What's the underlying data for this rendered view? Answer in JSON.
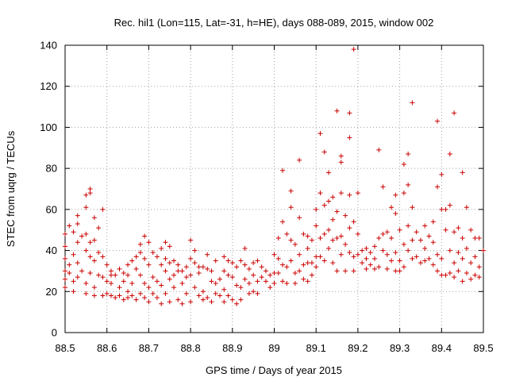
{
  "chart_data": {
    "type": "scatter",
    "title": "Rec. hil1 (Lon=115, Lat=-31, h=HE), days 088-089, 2015, window 002",
    "xlabel": "GPS time / Days of year 2015",
    "ylabel": "STEC from uqrg / TECUs",
    "xlim": [
      88.5,
      89.5
    ],
    "ylim": [
      0,
      140
    ],
    "xticks": [
      "88.5",
      "88.6",
      "88.7",
      "88.8",
      "88.9",
      "89",
      "89.1",
      "89.2",
      "89.3",
      "89.4",
      "89.5"
    ],
    "yticks": [
      "0",
      "20",
      "40",
      "60",
      "80",
      "100",
      "120",
      "140"
    ],
    "grid": true,
    "legend": "none",
    "marker": "plus",
    "color": "#cc0000",
    "points": [
      [
        88.5,
        48
      ],
      [
        88.5,
        42
      ],
      [
        88.5,
        36
      ],
      [
        88.5,
        30
      ],
      [
        88.5,
        26
      ],
      [
        88.5,
        22
      ],
      [
        88.51,
        52
      ],
      [
        88.51,
        33
      ],
      [
        88.51,
        29
      ],
      [
        88.52,
        49
      ],
      [
        88.52,
        38
      ],
      [
        88.52,
        25
      ],
      [
        88.52,
        20
      ],
      [
        88.53,
        57
      ],
      [
        88.53,
        53
      ],
      [
        88.53,
        44
      ],
      [
        88.53,
        34
      ],
      [
        88.53,
        27
      ],
      [
        88.54,
        47
      ],
      [
        88.54,
        30
      ],
      [
        88.55,
        61
      ],
      [
        88.55,
        67
      ],
      [
        88.55,
        48
      ],
      [
        88.55,
        40
      ],
      [
        88.55,
        24
      ],
      [
        88.55,
        19
      ],
      [
        88.56,
        70
      ],
      [
        88.56,
        68
      ],
      [
        88.56,
        44
      ],
      [
        88.56,
        37
      ],
      [
        88.56,
        29
      ],
      [
        88.57,
        56
      ],
      [
        88.57,
        45
      ],
      [
        88.57,
        35
      ],
      [
        88.57,
        22
      ],
      [
        88.57,
        18
      ],
      [
        88.58,
        51
      ],
      [
        88.58,
        39
      ],
      [
        88.58,
        28
      ],
      [
        88.59,
        60
      ],
      [
        88.59,
        37
      ],
      [
        88.59,
        27
      ],
      [
        88.59,
        18
      ],
      [
        88.6,
        33
      ],
      [
        88.6,
        25
      ],
      [
        88.6,
        19
      ],
      [
        88.61,
        30
      ],
      [
        88.61,
        28
      ],
      [
        88.61,
        24
      ],
      [
        88.61,
        18
      ],
      [
        88.62,
        28
      ],
      [
        88.62,
        17
      ],
      [
        88.63,
        31
      ],
      [
        88.63,
        22
      ],
      [
        88.63,
        18
      ],
      [
        88.64,
        29
      ],
      [
        88.64,
        25
      ],
      [
        88.64,
        16
      ],
      [
        88.65,
        33
      ],
      [
        88.65,
        28
      ],
      [
        88.65,
        20
      ],
      [
        88.65,
        17
      ],
      [
        88.66,
        35
      ],
      [
        88.66,
        24
      ],
      [
        88.66,
        18
      ],
      [
        88.67,
        37
      ],
      [
        88.67,
        31
      ],
      [
        88.67,
        16
      ],
      [
        88.68,
        43
      ],
      [
        88.68,
        39
      ],
      [
        88.68,
        28
      ],
      [
        88.68,
        19
      ],
      [
        88.69,
        47
      ],
      [
        88.69,
        36
      ],
      [
        88.69,
        24
      ],
      [
        88.69,
        17
      ],
      [
        88.7,
        44
      ],
      [
        88.7,
        33
      ],
      [
        88.7,
        22
      ],
      [
        88.7,
        15
      ],
      [
        88.71,
        39
      ],
      [
        88.71,
        27
      ],
      [
        88.71,
        19
      ],
      [
        88.72,
        37
      ],
      [
        88.72,
        25
      ],
      [
        88.72,
        17
      ],
      [
        88.73,
        41
      ],
      [
        88.73,
        33
      ],
      [
        88.73,
        23
      ],
      [
        88.73,
        14
      ],
      [
        88.74,
        44
      ],
      [
        88.74,
        36
      ],
      [
        88.74,
        30
      ],
      [
        88.74,
        19
      ],
      [
        88.75,
        42
      ],
      [
        88.75,
        34
      ],
      [
        88.75,
        26
      ],
      [
        88.75,
        15
      ],
      [
        88.76,
        35
      ],
      [
        88.76,
        28
      ],
      [
        88.76,
        22
      ],
      [
        88.77,
        33
      ],
      [
        88.77,
        30
      ],
      [
        88.77,
        16
      ],
      [
        88.78,
        30
      ],
      [
        88.78,
        24
      ],
      [
        88.78,
        14
      ],
      [
        88.79,
        32
      ],
      [
        88.79,
        27
      ],
      [
        88.79,
        19
      ],
      [
        88.8,
        45
      ],
      [
        88.8,
        36
      ],
      [
        88.8,
        28
      ],
      [
        88.8,
        15
      ],
      [
        88.81,
        40
      ],
      [
        88.81,
        34
      ],
      [
        88.81,
        22
      ],
      [
        88.82,
        32
      ],
      [
        88.82,
        29
      ],
      [
        88.82,
        18
      ],
      [
        88.83,
        32
      ],
      [
        88.83,
        20
      ],
      [
        88.83,
        16
      ],
      [
        88.84,
        38
      ],
      [
        88.84,
        31
      ],
      [
        88.84,
        17
      ],
      [
        88.85,
        30
      ],
      [
        88.85,
        25
      ],
      [
        88.85,
        15
      ],
      [
        88.86,
        35
      ],
      [
        88.86,
        24
      ],
      [
        88.86,
        19
      ],
      [
        88.87,
        26
      ],
      [
        88.87,
        18
      ],
      [
        88.88,
        37
      ],
      [
        88.88,
        30
      ],
      [
        88.88,
        21
      ],
      [
        88.88,
        15
      ],
      [
        88.89,
        35
      ],
      [
        88.89,
        28
      ],
      [
        88.89,
        18
      ],
      [
        88.9,
        34
      ],
      [
        88.9,
        27
      ],
      [
        88.9,
        16
      ],
      [
        88.91,
        32
      ],
      [
        88.91,
        23
      ],
      [
        88.91,
        14
      ],
      [
        88.92,
        35
      ],
      [
        88.92,
        22
      ],
      [
        88.92,
        16
      ],
      [
        88.93,
        41
      ],
      [
        88.93,
        33
      ],
      [
        88.93,
        26
      ],
      [
        88.94,
        31
      ],
      [
        88.94,
        24
      ],
      [
        88.94,
        19
      ],
      [
        88.95,
        34
      ],
      [
        88.95,
        28
      ],
      [
        88.95,
        20
      ],
      [
        88.96,
        35
      ],
      [
        88.96,
        25
      ],
      [
        88.96,
        19
      ],
      [
        88.97,
        32
      ],
      [
        88.97,
        27
      ],
      [
        88.98,
        30
      ],
      [
        88.98,
        25
      ],
      [
        88.99,
        28
      ],
      [
        88.99,
        22
      ],
      [
        89.0,
        38
      ],
      [
        89.0,
        29
      ],
      [
        89.0,
        24
      ],
      [
        89.01,
        46
      ],
      [
        89.01,
        36
      ],
      [
        89.01,
        29
      ],
      [
        89.02,
        79
      ],
      [
        89.02,
        54
      ],
      [
        89.02,
        33
      ],
      [
        89.02,
        25
      ],
      [
        89.03,
        48
      ],
      [
        89.03,
        32
      ],
      [
        89.03,
        24
      ],
      [
        89.04,
        69
      ],
      [
        89.04,
        61
      ],
      [
        89.04,
        45
      ],
      [
        89.04,
        35
      ],
      [
        89.05,
        43
      ],
      [
        89.05,
        29
      ],
      [
        89.05,
        24
      ],
      [
        89.06,
        84
      ],
      [
        89.06,
        56
      ],
      [
        89.06,
        38
      ],
      [
        89.06,
        30
      ],
      [
        89.07,
        48
      ],
      [
        89.07,
        33
      ],
      [
        89.07,
        26
      ],
      [
        89.08,
        47
      ],
      [
        89.08,
        41
      ],
      [
        89.08,
        34
      ],
      [
        89.08,
        25
      ],
      [
        89.09,
        45
      ],
      [
        89.09,
        34
      ],
      [
        89.09,
        28
      ],
      [
        89.1,
        60
      ],
      [
        89.1,
        52
      ],
      [
        89.1,
        37
      ],
      [
        89.1,
        32
      ],
      [
        89.11,
        97
      ],
      [
        89.11,
        68
      ],
      [
        89.11,
        46
      ],
      [
        89.11,
        37
      ],
      [
        89.12,
        88
      ],
      [
        89.12,
        62
      ],
      [
        89.12,
        48
      ],
      [
        89.12,
        35
      ],
      [
        89.13,
        78
      ],
      [
        89.13,
        64
      ],
      [
        89.13,
        50
      ],
      [
        89.13,
        41
      ],
      [
        89.14,
        66
      ],
      [
        89.14,
        55
      ],
      [
        89.14,
        45
      ],
      [
        89.14,
        34
      ],
      [
        89.15,
        108
      ],
      [
        89.15,
        59
      ],
      [
        89.15,
        46
      ],
      [
        89.15,
        30
      ],
      [
        89.16,
        86
      ],
      [
        89.16,
        83
      ],
      [
        89.16,
        68
      ],
      [
        89.16,
        47
      ],
      [
        89.16,
        38
      ],
      [
        89.17,
        57
      ],
      [
        89.17,
        43
      ],
      [
        89.17,
        30
      ],
      [
        89.18,
        107
      ],
      [
        89.18,
        95
      ],
      [
        89.18,
        67
      ],
      [
        89.18,
        51
      ],
      [
        89.18,
        39
      ],
      [
        89.19,
        138
      ],
      [
        89.19,
        54
      ],
      [
        89.19,
        37
      ],
      [
        89.19,
        30
      ],
      [
        89.2,
        68
      ],
      [
        89.2,
        48
      ],
      [
        89.2,
        38
      ],
      [
        89.21,
        40
      ],
      [
        89.21,
        34
      ],
      [
        89.22,
        41
      ],
      [
        89.22,
        36
      ],
      [
        89.22,
        31
      ],
      [
        89.23,
        39
      ],
      [
        89.23,
        33
      ],
      [
        89.24,
        42
      ],
      [
        89.24,
        36
      ],
      [
        89.24,
        31
      ],
      [
        89.25,
        89
      ],
      [
        89.25,
        46
      ],
      [
        89.25,
        32
      ],
      [
        89.26,
        71
      ],
      [
        89.26,
        48
      ],
      [
        89.26,
        40
      ],
      [
        89.27,
        49
      ],
      [
        89.27,
        38
      ],
      [
        89.27,
        31
      ],
      [
        89.28,
        61
      ],
      [
        89.28,
        46
      ],
      [
        89.28,
        35
      ],
      [
        89.29,
        67
      ],
      [
        89.29,
        58
      ],
      [
        89.29,
        39
      ],
      [
        89.29,
        30
      ],
      [
        89.3,
        50
      ],
      [
        89.3,
        35
      ],
      [
        89.3,
        30
      ],
      [
        89.31,
        82
      ],
      [
        89.31,
        68
      ],
      [
        89.31,
        43
      ],
      [
        89.31,
        32
      ],
      [
        89.32,
        87
      ],
      [
        89.32,
        72
      ],
      [
        89.32,
        52
      ],
      [
        89.32,
        40
      ],
      [
        89.33,
        112
      ],
      [
        89.33,
        61
      ],
      [
        89.33,
        45
      ],
      [
        89.33,
        36
      ],
      [
        89.34,
        49
      ],
      [
        89.34,
        37
      ],
      [
        89.35,
        45
      ],
      [
        89.35,
        34
      ],
      [
        89.36,
        52
      ],
      [
        89.36,
        41
      ],
      [
        89.36,
        35
      ],
      [
        89.37,
        47
      ],
      [
        89.37,
        36
      ],
      [
        89.38,
        54
      ],
      [
        89.38,
        44
      ],
      [
        89.38,
        33
      ],
      [
        89.39,
        103
      ],
      [
        89.39,
        71
      ],
      [
        89.39,
        38
      ],
      [
        89.39,
        30
      ],
      [
        89.4,
        77
      ],
      [
        89.4,
        60
      ],
      [
        89.4,
        36
      ],
      [
        89.4,
        28
      ],
      [
        89.41,
        60
      ],
      [
        89.41,
        50
      ],
      [
        89.41,
        28
      ],
      [
        89.42,
        87
      ],
      [
        89.42,
        62
      ],
      [
        89.42,
        40
      ],
      [
        89.42,
        29
      ],
      [
        89.43,
        107
      ],
      [
        89.43,
        49
      ],
      [
        89.43,
        34
      ],
      [
        89.43,
        27
      ],
      [
        89.44,
        51
      ],
      [
        89.44,
        39
      ],
      [
        89.44,
        30
      ],
      [
        89.45,
        78
      ],
      [
        89.45,
        46
      ],
      [
        89.45,
        36
      ],
      [
        89.45,
        25
      ],
      [
        89.46,
        61
      ],
      [
        89.46,
        41
      ],
      [
        89.46,
        29
      ],
      [
        89.47,
        50
      ],
      [
        89.47,
        34
      ],
      [
        89.47,
        26
      ],
      [
        89.48,
        46
      ],
      [
        89.48,
        37
      ],
      [
        89.48,
        28
      ],
      [
        89.49,
        46
      ],
      [
        89.49,
        32
      ],
      [
        89.49,
        27
      ],
      [
        89.5,
        40
      ]
    ]
  }
}
